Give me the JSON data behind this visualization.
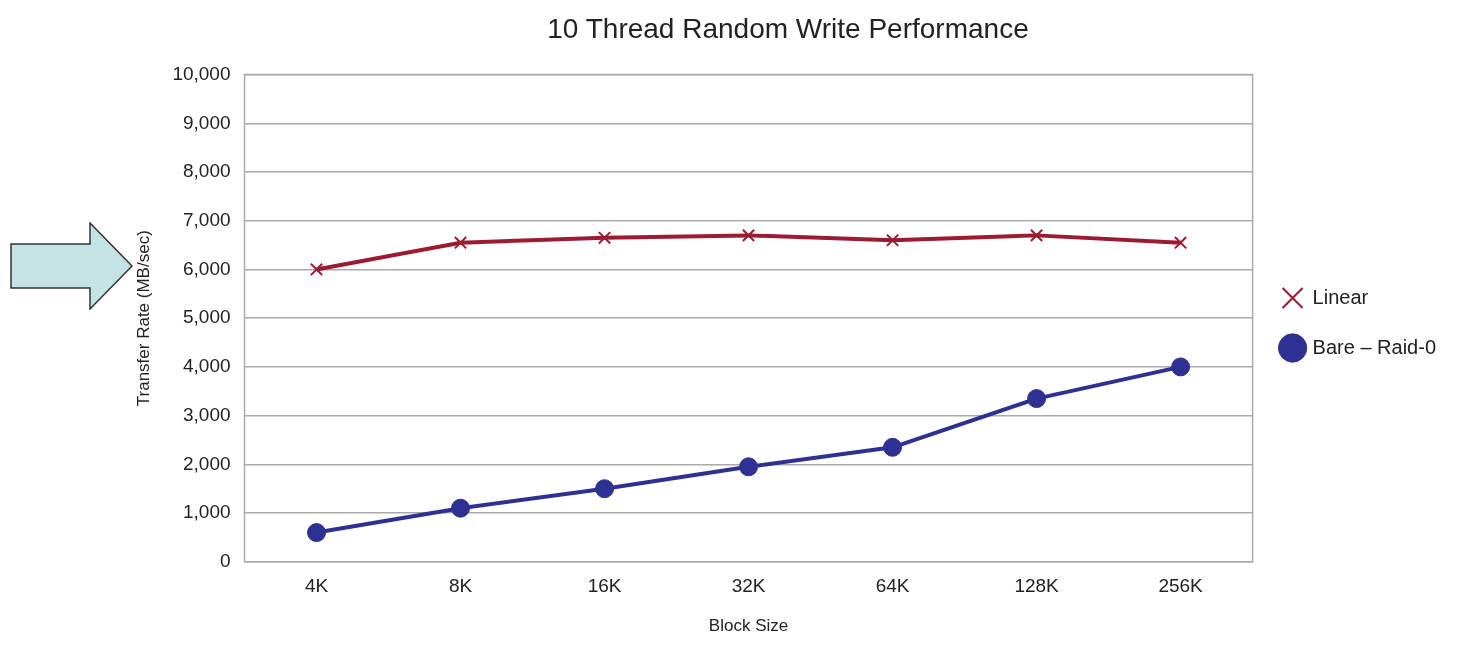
{
  "chart_data": {
    "type": "line",
    "title": "10 Thread Random Write Performance",
    "xlabel": "Block Size",
    "ylabel": "Transfer Rate (MB/sec)",
    "categories": [
      "4K",
      "8K",
      "16K",
      "32K",
      "64K",
      "128K",
      "256K"
    ],
    "series": [
      {
        "name": "Linear",
        "color": "#9b1b30",
        "marker": "cross",
        "values": [
          6000,
          6550,
          6650,
          6700,
          6600,
          6700,
          6550
        ]
      },
      {
        "name": "Bare – Raid-0",
        "color": "#2e3192",
        "marker": "circle",
        "values": [
          600,
          1100,
          1500,
          1950,
          2350,
          3350,
          4000
        ]
      }
    ],
    "ylim": [
      0,
      10000
    ],
    "yticks": [
      {
        "value": 0,
        "label": "0"
      },
      {
        "value": 1000,
        "label": "1,000"
      },
      {
        "value": 2000,
        "label": "2,000"
      },
      {
        "value": 3000,
        "label": "3,000"
      },
      {
        "value": 4000,
        "label": "4,000"
      },
      {
        "value": 5000,
        "label": "5,000"
      },
      {
        "value": 6000,
        "label": "6,000"
      },
      {
        "value": 7000,
        "label": "7,000"
      },
      {
        "value": 8000,
        "label": "8,000"
      },
      {
        "value": 9000,
        "label": "9,000"
      },
      {
        "value": 10000,
        "label": "10,000"
      }
    ],
    "grid": "y",
    "legend": "right"
  }
}
